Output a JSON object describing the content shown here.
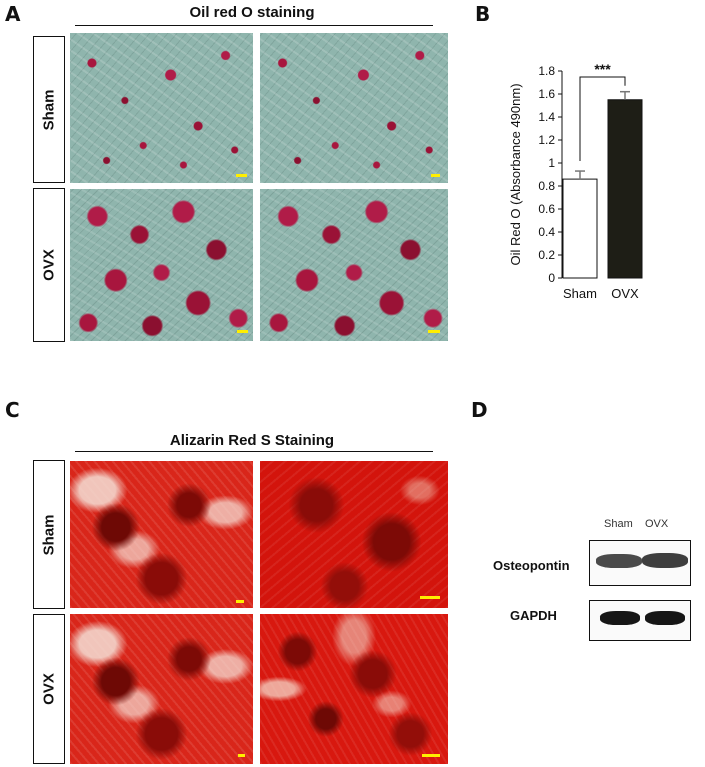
{
  "panels": {
    "A": {
      "letter": "A",
      "header": "Oil red O staining",
      "rows": [
        "Sham",
        "OVX"
      ]
    },
    "B": {
      "letter": "B",
      "ylabel": "Oil Red O (Absorbance 490nm)",
      "significance": "***"
    },
    "C": {
      "letter": "C",
      "header": "Alizarin Red S Staining",
      "rows": [
        "Sham",
        "OVX"
      ]
    },
    "D": {
      "letter": "D",
      "samples": [
        "Sham",
        "OVX"
      ],
      "proteins": [
        "Osteopontin",
        "GAPDH"
      ]
    }
  },
  "chart_data": {
    "type": "bar",
    "categories": [
      "Sham",
      "OVX"
    ],
    "values": [
      0.86,
      1.55
    ],
    "errors": [
      0.07,
      0.07
    ],
    "ylabel": "Oil Red O (Absorbance 490nm)",
    "ylim": [
      0,
      1.8
    ],
    "yticks": [
      "0",
      "0.2",
      "0.4",
      "0.6",
      "0.8",
      "1",
      "1.2",
      "1.4",
      "1.6",
      "1.8"
    ],
    "bar_colors": [
      "#ffffff",
      "#1e1e16"
    ],
    "significance": "***",
    "grid": false
  },
  "colors": {
    "scale_bar": "#ffee00",
    "oil_background": "#8fb5ad",
    "oil_stain": "#a8163e",
    "alizarin": "#d8180f"
  }
}
